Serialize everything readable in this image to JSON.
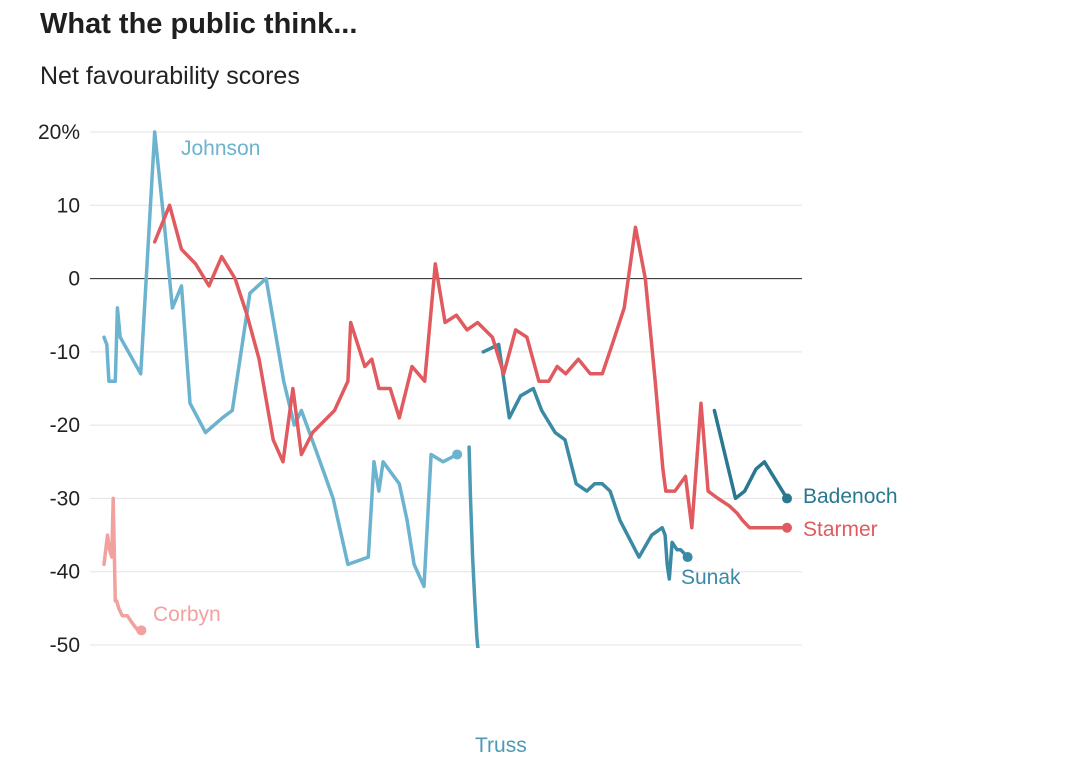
{
  "header": {
    "title": "What the public think...",
    "subtitle": "Net favourability scores"
  },
  "chart_data": {
    "type": "line",
    "title": "What the public think...",
    "subtitle": "Net favourability scores",
    "xlabel": "",
    "ylabel": "",
    "ylim": [
      -50,
      20
    ],
    "yticks": [
      20,
      10,
      0,
      -10,
      -20,
      -30,
      -40,
      -50
    ],
    "ytick_labels": [
      "20%",
      "10",
      "0",
      "-10",
      "-20",
      "-30",
      "-40",
      "-50"
    ],
    "zero_line": true,
    "grid": "horizontal",
    "xlim": [
      0,
      100
    ],
    "series": [
      {
        "name": "Johnson",
        "color": "#6bb3cf",
        "end_marker": true,
        "x": [
          0.0,
          0.4,
          0.7,
          1.2,
          1.6,
          1.9,
          2.3,
          5.2,
          7.2,
          8.6,
          9.7,
          11.0,
          12.2,
          14.4,
          16.8,
          18.2,
          20.7,
          23.0,
          25.5,
          27.0,
          28.0,
          29.9,
          31.4,
          32.5,
          34.6,
          37.5,
          38.3,
          39.0,
          39.6,
          41.9,
          43.0,
          44.0,
          45.4,
          46.4,
          48.1,
          50.1
        ],
        "values": [
          -8,
          -9,
          -14,
          -14,
          -14,
          -4,
          -8,
          -13,
          20,
          7,
          -4,
          -1,
          -17,
          -21,
          -19,
          -18,
          -2,
          0,
          -14,
          -20,
          -18,
          -23,
          -27,
          -30,
          -39,
          -38,
          -25,
          -29,
          -25,
          -28,
          -33,
          -39,
          -42,
          -24,
          -25,
          -24
        ]
      },
      {
        "name": "Truss",
        "color": "#4d9ab5",
        "end_marker": false,
        "x": [
          51.8,
          52.0,
          52.3,
          52.6,
          52.9,
          53.2
        ],
        "values": [
          -23,
          -30,
          -38,
          -44,
          -49,
          -52
        ]
      },
      {
        "name": "Sunak",
        "color": "#3b8aa5",
        "end_marker": true,
        "x": [
          53.8,
          56.0,
          57.5,
          59.1,
          60.9,
          62.1,
          64.0,
          65.4,
          67.0,
          68.5,
          69.6,
          70.7,
          71.8,
          73.2,
          75.9,
          77.7,
          79.2,
          79.6,
          79.9,
          80.2,
          80.6,
          81.3,
          81.8,
          82.8
        ],
        "values": [
          -10,
          -9,
          -19,
          -16,
          -15,
          -18,
          -21,
          -22,
          -28,
          -29,
          -28,
          -28,
          -29,
          -33,
          -38,
          -35,
          -34,
          -35,
          -39,
          -41,
          -36,
          -37,
          -37,
          -38
        ]
      },
      {
        "name": "Badenoch",
        "color": "#2a7890",
        "end_marker": true,
        "x": [
          86.6,
          89.6,
          90.9,
          92.5,
          93.7,
          96.9
        ],
        "values": [
          -18,
          -30,
          -29,
          -26,
          -25,
          -30
        ]
      },
      {
        "name": "Starmer",
        "color": "#e05a5f",
        "end_marker": true,
        "x": [
          7.2,
          9.3,
          11.0,
          13.0,
          14.9,
          16.7,
          18.6,
          20.3,
          22.0,
          24.0,
          25.4,
          26.8,
          28.0,
          29.6,
          32.7,
          34.6,
          35.0,
          37.0,
          38.0,
          39.0,
          40.6,
          41.9,
          43.7,
          45.5,
          47.0,
          48.4,
          50.0,
          51.5,
          53.0,
          55.1,
          56.7,
          58.4,
          60.0,
          61.7,
          63.1,
          64.3,
          65.5,
          67.3,
          69.0,
          70.7,
          72.1,
          73.8,
          75.4,
          76.8,
          78.2,
          79.3,
          79.7,
          80.3,
          81.0,
          82.5,
          83.4,
          84.7,
          85.7,
          87.1,
          88.7,
          89.8,
          90.6,
          91.6,
          92.2,
          93.7,
          96.9
        ],
        "values": [
          5,
          10,
          4,
          2,
          -1,
          3,
          0,
          -5,
          -11,
          -22,
          -25,
          -15,
          -24,
          -21,
          -18,
          -14,
          -6,
          -12,
          -11,
          -15,
          -15,
          -19,
          -12,
          -14,
          2,
          -6,
          -5,
          -7,
          -6,
          -8,
          -13,
          -7,
          -8,
          -14,
          -14,
          -12,
          -13,
          -11,
          -13,
          -13,
          -9,
          -4,
          7,
          0,
          -14,
          -26,
          -29,
          -29,
          -29,
          -27,
          -34,
          -17,
          -29,
          -30,
          -31,
          -32,
          -33,
          -34,
          -34,
          -34,
          -34
        ]
      },
      {
        "name": "Corbyn",
        "color": "#f2a19f",
        "end_marker": true,
        "x": [
          0.0,
          0.5,
          0.8,
          1.1,
          1.3,
          1.6,
          1.8,
          2.1,
          2.6,
          3.3,
          4.0,
          4.8,
          5.3
        ],
        "values": [
          -39,
          -35,
          -37,
          -38,
          -30,
          -44,
          -44,
          -45,
          -46,
          -46,
          -47,
          -48,
          -48
        ]
      }
    ],
    "labels": {
      "johnson": "Johnson",
      "truss": "Truss",
      "sunak": "Sunak",
      "badenoch": "Badenoch",
      "starmer": "Starmer",
      "corbyn": "Corbyn"
    },
    "colors": {
      "grid": "#e3e3e3",
      "zero_line": "#222222",
      "tick_text": "#222222"
    }
  }
}
